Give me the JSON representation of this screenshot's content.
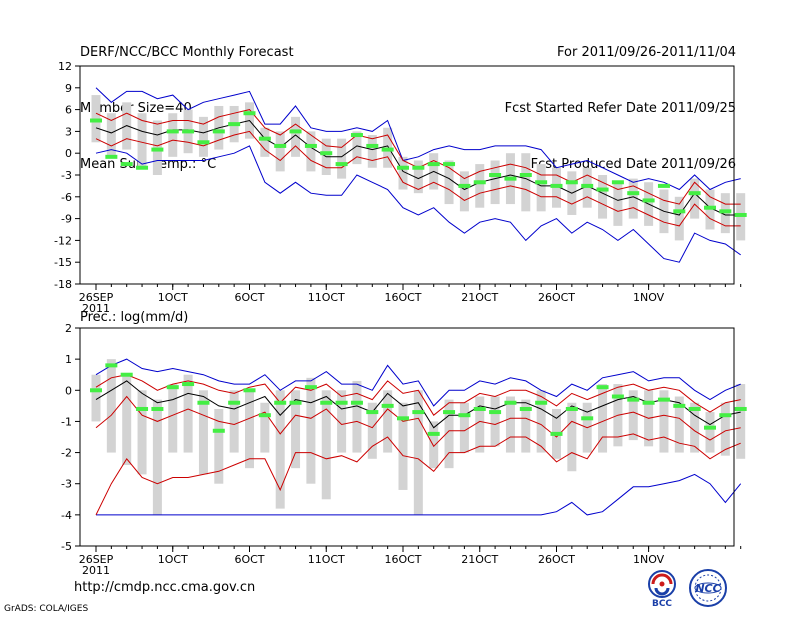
{
  "header": {
    "title": "DERF/NCC/BCC Monthly Forecast",
    "member_size": "Member Size=40",
    "variable": "Mean Surf. Temp.: °C",
    "period": "For 2011/09/26-2011/11/04",
    "refer_date": "Fcst Started Refer Date 2011/09/25",
    "produced_date": "Fcst Produced Date 2011/09/26"
  },
  "footer": {
    "url": "http://cmdp.ncc.cma.gov.cn",
    "credit": "GrADS: COLA/IGES",
    "logo_bcc": "BCC",
    "logo_ncc": "NCC"
  },
  "colors": {
    "box": "#d3d3d3",
    "median": "#44ee44",
    "mean": "#000000",
    "spread": "#cc0000",
    "extreme": "#0000cc"
  },
  "chart_data": [
    {
      "type": "box",
      "title": "Mean Surf. Temp.: °C",
      "ylim": [
        -18,
        12
      ],
      "yticks": [
        12,
        9,
        6,
        3,
        0,
        -3,
        -6,
        -9,
        -12,
        -15,
        -18
      ],
      "xticks": [
        {
          "label": "26SEP",
          "day": 0
        },
        {
          "label": "1OCT",
          "day": 5
        },
        {
          "label": "6OCT",
          "day": 10
        },
        {
          "label": "11OCT",
          "day": 15
        },
        {
          "label": "16OCT",
          "day": 20
        },
        {
          "label": "21OCT",
          "day": 25
        },
        {
          "label": "26OCT",
          "day": 30
        },
        {
          "label": "1NOV",
          "day": 36
        }
      ],
      "xlabel_year": "2011",
      "series": {
        "mean": [
          3.5,
          2.8,
          3.8,
          3.0,
          2.5,
          3.2,
          3.2,
          2.8,
          3.5,
          4.0,
          4.5,
          2.0,
          0.8,
          2.5,
          0.8,
          -0.5,
          -0.5,
          1.0,
          0.5,
          1.0,
          -2.5,
          -3.5,
          -2.5,
          -3.5,
          -5.0,
          -4.0,
          -3.5,
          -3.0,
          -3.5,
          -4.5,
          -4.5,
          -5.5,
          -4.5,
          -5.5,
          -6.5,
          -6.0,
          -7.0,
          -8.0,
          -8.5,
          -5.5,
          -7.5,
          -8.5,
          -8.5
        ],
        "upper": [
          5.5,
          4.5,
          5.5,
          4.5,
          4.0,
          4.5,
          4.5,
          4.0,
          5.0,
          5.5,
          6.0,
          3.5,
          2.5,
          4.0,
          2.5,
          1.0,
          0.8,
          2.5,
          2.0,
          2.5,
          -1.0,
          -2.0,
          -1.0,
          -2.0,
          -3.5,
          -2.5,
          -2.0,
          -1.5,
          -2.0,
          -3.0,
          -3.0,
          -4.0,
          -3.0,
          -4.0,
          -5.0,
          -4.5,
          -5.5,
          -6.5,
          -7.0,
          -4.0,
          -6.0,
          -7.0,
          -7.0
        ],
        "lower": [
          2.0,
          1.0,
          2.0,
          1.5,
          1.0,
          1.8,
          1.5,
          1.0,
          1.8,
          2.5,
          3.0,
          0.5,
          -1.0,
          1.0,
          -1.0,
          -2.0,
          -2.0,
          -0.5,
          -1.0,
          -0.5,
          -4.0,
          -5.0,
          -4.0,
          -5.0,
          -6.5,
          -5.5,
          -5.0,
          -4.5,
          -5.0,
          -6.0,
          -6.0,
          -7.0,
          -6.0,
          -7.0,
          -8.0,
          -7.5,
          -8.5,
          -9.5,
          -10.0,
          -7.0,
          -9.0,
          -10.0,
          -10.0
        ],
        "max": [
          9.0,
          7.0,
          8.5,
          8.5,
          7.5,
          8.0,
          6.0,
          7.0,
          7.5,
          8.0,
          8.5,
          4.0,
          4.0,
          6.5,
          3.5,
          3.0,
          3.0,
          3.5,
          3.0,
          4.5,
          -1.0,
          -0.5,
          0.5,
          1.0,
          0.5,
          0.5,
          1.0,
          1.0,
          1.0,
          0.5,
          -2.0,
          -1.5,
          -1.0,
          -2.0,
          -3.0,
          -4.0,
          -3.5,
          -4.0,
          -5.0,
          -3.0,
          -5.0,
          -4.0,
          -3.5
        ],
        "min": [
          0.0,
          0.5,
          0.0,
          -1.5,
          -1.0,
          -1.0,
          -1.0,
          -1.0,
          -0.5,
          0.0,
          1.0,
          -4.0,
          -5.5,
          -4.0,
          -5.5,
          -5.8,
          -5.8,
          -3.0,
          -4.0,
          -5.0,
          -7.5,
          -8.5,
          -7.5,
          -9.5,
          -11.0,
          -9.5,
          -9.0,
          -9.5,
          -12.0,
          -10.0,
          -9.0,
          -11.0,
          -9.5,
          -10.5,
          -12.0,
          -10.5,
          -12.5,
          -14.5,
          -15.0,
          -11.0,
          -12.0,
          -12.5,
          -14.0
        ],
        "median": [
          4.5,
          -0.5,
          -1.5,
          -2.0,
          0.5,
          3.0,
          3.0,
          1.5,
          3.0,
          4.0,
          5.5,
          2.0,
          1.0,
          3.0,
          1.0,
          0.0,
          -1.5,
          2.5,
          1.0,
          0.5,
          -2.0,
          -2.0,
          -1.5,
          -1.5,
          -4.5,
          -4.0,
          -3.0,
          -3.5,
          -3.0,
          -4.0,
          -4.5,
          -4.0,
          -4.5,
          -5.0,
          -4.0,
          -5.5,
          -6.5,
          -4.5,
          -8.0,
          -5.5,
          -7.5,
          -8.0,
          -8.5
        ],
        "box_top": [
          8.0,
          5.5,
          7.0,
          5.5,
          4.5,
          5.5,
          6.0,
          5.0,
          6.5,
          6.5,
          7.0,
          3.5,
          3.0,
          5.0,
          3.0,
          2.0,
          2.0,
          3.0,
          2.5,
          3.5,
          -0.5,
          -1.0,
          0.0,
          -1.0,
          -2.5,
          -1.5,
          -1.0,
          0.0,
          0.0,
          -1.5,
          -2.0,
          -2.5,
          -2.0,
          -3.0,
          -4.0,
          -3.5,
          -4.0,
          -5.0,
          -6.0,
          -3.5,
          -5.0,
          -5.5,
          -5.5
        ],
        "box_bot": [
          1.5,
          -0.5,
          0.5,
          -2.0,
          -3.0,
          -0.5,
          0.0,
          -0.5,
          0.5,
          1.5,
          2.0,
          -0.5,
          -2.5,
          -0.5,
          -2.5,
          -3.0,
          -3.5,
          -1.5,
          -2.0,
          -2.0,
          -5.0,
          -5.5,
          -5.0,
          -7.0,
          -8.0,
          -7.5,
          -7.0,
          -7.0,
          -8.0,
          -8.0,
          -7.5,
          -8.5,
          -7.5,
          -9.0,
          -10.0,
          -9.0,
          -10.0,
          -11.0,
          -12.0,
          -9.0,
          -10.5,
          -11.0,
          -12.0
        ]
      }
    },
    {
      "type": "box",
      "title": "Prec.: log(mm/d)",
      "ylim": [
        -5,
        2
      ],
      "yticks": [
        2,
        1,
        0,
        -1,
        -2,
        -3,
        -4,
        -5
      ],
      "xticks": [
        {
          "label": "26SEP",
          "day": 0
        },
        {
          "label": "1OCT",
          "day": 5
        },
        {
          "label": "6OCT",
          "day": 10
        },
        {
          "label": "11OCT",
          "day": 15
        },
        {
          "label": "16OCT",
          "day": 20
        },
        {
          "label": "21OCT",
          "day": 25
        },
        {
          "label": "26OCT",
          "day": 30
        },
        {
          "label": "1NOV",
          "day": 36
        }
      ],
      "xlabel_year": "2011",
      "series": {
        "mean": [
          -0.3,
          0.0,
          0.3,
          -0.1,
          -0.4,
          -0.3,
          -0.1,
          -0.2,
          -0.5,
          -0.6,
          -0.4,
          -0.2,
          -0.8,
          -0.3,
          -0.4,
          -0.2,
          -0.6,
          -0.5,
          -0.7,
          -0.1,
          -0.5,
          -0.4,
          -1.2,
          -0.8,
          -0.8,
          -0.5,
          -0.6,
          -0.4,
          -0.4,
          -0.6,
          -0.9,
          -0.5,
          -0.7,
          -0.5,
          -0.3,
          -0.2,
          -0.4,
          -0.3,
          -0.4,
          -0.8,
          -1.1,
          -0.8,
          -0.7
        ],
        "upper": [
          0.1,
          0.4,
          0.5,
          0.3,
          0.0,
          0.2,
          0.3,
          0.2,
          0.0,
          -0.1,
          0.1,
          0.2,
          -0.4,
          0.1,
          0.0,
          0.2,
          -0.2,
          -0.1,
          -0.3,
          0.3,
          -0.1,
          0.0,
          -0.8,
          -0.4,
          -0.4,
          -0.1,
          -0.2,
          0.0,
          0.0,
          -0.2,
          -0.5,
          -0.1,
          -0.3,
          -0.1,
          0.1,
          0.2,
          0.0,
          0.1,
          0.0,
          -0.4,
          -0.7,
          -0.4,
          -0.3
        ],
        "lower": [
          -1.2,
          -0.8,
          -0.2,
          -0.8,
          -1.0,
          -0.8,
          -0.6,
          -0.8,
          -1.0,
          -1.1,
          -0.9,
          -0.7,
          -1.4,
          -0.8,
          -0.9,
          -0.6,
          -1.1,
          -1.0,
          -1.2,
          -0.6,
          -1.0,
          -0.9,
          -1.8,
          -1.3,
          -1.3,
          -1.0,
          -1.1,
          -0.9,
          -0.9,
          -1.1,
          -1.5,
          -1.0,
          -1.2,
          -1.0,
          -0.8,
          -0.7,
          -0.9,
          -0.8,
          -0.9,
          -1.3,
          -1.6,
          -1.3,
          -1.2
        ],
        "max": [
          0.5,
          0.8,
          1.0,
          0.7,
          0.6,
          0.7,
          0.6,
          0.5,
          0.3,
          0.2,
          0.2,
          0.5,
          0.0,
          0.3,
          0.3,
          0.6,
          0.2,
          0.2,
          0.0,
          0.8,
          0.2,
          0.3,
          -0.5,
          0.0,
          0.0,
          0.3,
          0.2,
          0.4,
          0.3,
          0.0,
          -0.2,
          0.2,
          0.0,
          0.4,
          0.5,
          0.6,
          0.3,
          0.4,
          0.4,
          0.0,
          -0.3,
          0.0,
          0.2
        ],
        "min": [
          -4.0,
          -3.0,
          -2.2,
          -2.8,
          -3.0,
          -2.8,
          -2.8,
          -2.7,
          -2.6,
          -2.4,
          -2.2,
          -2.2,
          -3.2,
          -2.0,
          -2.0,
          -2.2,
          -2.1,
          -2.3,
          -1.8,
          -1.5,
          -2.1,
          -2.2,
          -2.6,
          -2.0,
          -2.0,
          -1.8,
          -1.8,
          -1.5,
          -1.5,
          -1.8,
          -2.3,
          -2.0,
          -2.2,
          -1.5,
          -1.5,
          -1.4,
          -1.6,
          -1.5,
          -1.7,
          -1.8,
          -2.2,
          -1.9,
          -1.7
        ],
        "extreme_low": [
          -4.0,
          -4.0,
          -4.0,
          -4.0,
          -4.0,
          -4.0,
          -4.0,
          -4.0,
          -4.0,
          -4.0,
          -4.0,
          -4.0,
          -4.0,
          -4.0,
          -4.0,
          -4.0,
          -4.0,
          -4.0,
          -4.0,
          -4.0,
          -4.0,
          -4.0,
          -4.0,
          -4.0,
          -4.0,
          -4.0,
          -4.0,
          -4.0,
          -4.0,
          -4.0,
          -3.9,
          -3.6,
          -4.0,
          -3.9,
          -3.5,
          -3.1,
          -3.1,
          -3.0,
          -2.9,
          -2.7,
          -3.0,
          -3.6,
          -3.0
        ],
        "median": [
          0.0,
          0.8,
          0.5,
          -0.6,
          -0.6,
          0.1,
          0.2,
          -0.4,
          -1.3,
          -0.4,
          0.0,
          -0.8,
          -0.4,
          -0.4,
          0.1,
          -0.4,
          -0.4,
          -0.4,
          -0.7,
          -0.5,
          -0.9,
          -0.7,
          -1.4,
          -0.7,
          -0.8,
          -0.6,
          -0.7,
          -0.4,
          -0.6,
          -0.4,
          -1.4,
          -0.6,
          -0.9,
          0.1,
          -0.2,
          -0.3,
          -0.4,
          -0.3,
          -0.5,
          -0.6,
          -1.2,
          -0.8,
          -0.6
        ],
        "box_top": [
          0.5,
          1.0,
          0.5,
          0.0,
          -0.3,
          0.2,
          0.5,
          0.0,
          -0.6,
          0.0,
          0.0,
          -0.4,
          0.0,
          0.0,
          0.4,
          0.0,
          0.0,
          0.3,
          -0.4,
          0.0,
          -0.4,
          0.0,
          -1.0,
          -0.3,
          -0.4,
          -0.2,
          -0.2,
          -0.2,
          -0.3,
          0.0,
          -0.6,
          -0.4,
          -0.4,
          0.2,
          0.2,
          0.0,
          0.0,
          0.0,
          -0.2,
          -0.4,
          -0.7,
          -0.4,
          0.2
        ],
        "box_bot": [
          -1.0,
          -2.0,
          -2.4,
          -2.7,
          -4.0,
          -2.0,
          -2.0,
          -2.7,
          -3.0,
          -2.0,
          -2.5,
          -2.0,
          -3.8,
          -2.5,
          -3.0,
          -3.5,
          -2.0,
          -2.0,
          -2.2,
          -2.0,
          -3.2,
          -4.0,
          -2.5,
          -2.5,
          -2.0,
          -2.0,
          -1.8,
          -2.0,
          -2.0,
          -2.0,
          -2.2,
          -2.6,
          -2.0,
          -2.0,
          -1.8,
          -1.6,
          -1.8,
          -2.0,
          -2.0,
          -2.0,
          -2.0,
          -2.1,
          -2.2
        ]
      }
    }
  ]
}
